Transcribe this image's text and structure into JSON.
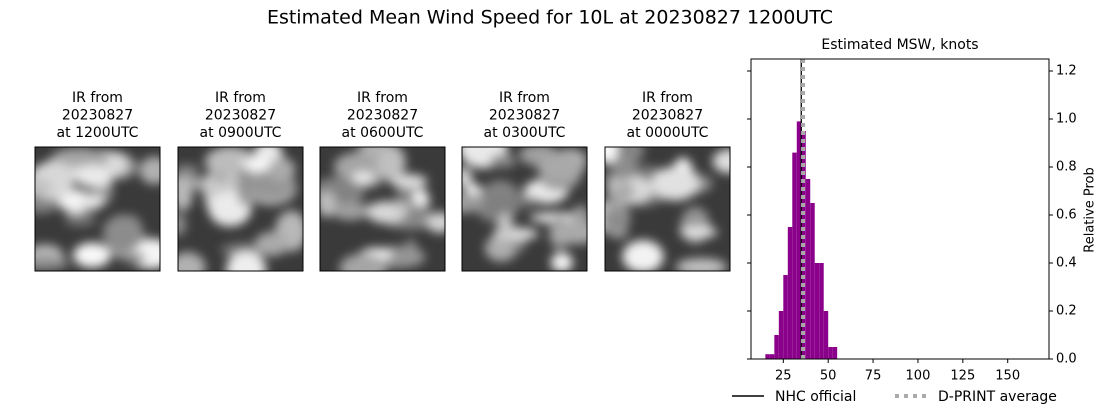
{
  "title": "Estimated Mean Wind Speed for 10L at 20230827 1200UTC",
  "panels": [
    {
      "lines": [
        "IR from",
        "20230827",
        "at 1200UTC"
      ]
    },
    {
      "lines": [
        "IR from",
        "20230827",
        "at 0900UTC"
      ]
    },
    {
      "lines": [
        "IR from",
        "20230827",
        "at 0600UTC"
      ]
    },
    {
      "lines": [
        "IR from",
        "20230827",
        "at 0300UTC"
      ]
    },
    {
      "lines": [
        "IR from",
        "20230827",
        "at 0000UTC"
      ]
    }
  ],
  "chart_data": {
    "type": "histogram",
    "title": "Estimated MSW, knots",
    "y_label": "Relative Prob",
    "bins": [
      15,
      17.5,
      20,
      22.5,
      25,
      27.5,
      30,
      32.5,
      35,
      37.5,
      40,
      42.5,
      45,
      47.5,
      50,
      52.5,
      55
    ],
    "values": [
      0.02,
      0.02,
      0.1,
      0.2,
      0.35,
      0.55,
      0.86,
      0.99,
      0.95,
      0.75,
      0.65,
      0.4,
      0.4,
      0.2,
      0.05,
      0.05
    ],
    "color": "#8b008b",
    "xlim": [
      7,
      173
    ],
    "xticks": [
      25,
      50,
      75,
      100,
      125,
      150
    ],
    "ylim": [
      0,
      1.25
    ],
    "yticks": [
      {
        "value": 0,
        "label": "0.0"
      },
      {
        "value": 0.2,
        "label": "0.2"
      },
      {
        "value": 0.4,
        "label": "0.4"
      },
      {
        "value": 0.6,
        "label": "0.6"
      },
      {
        "value": 0.8,
        "label": "0.8"
      },
      {
        "value": 1,
        "label": "1.0"
      },
      {
        "value": 1.2,
        "label": "1.2"
      }
    ],
    "lines": [
      {
        "name": "NHC official",
        "x": 35,
        "color": "#000000",
        "style": "solid"
      },
      {
        "name": "D-PRINT average",
        "x": 36,
        "color": "#aaaaaa",
        "style": "dotted"
      }
    ]
  }
}
